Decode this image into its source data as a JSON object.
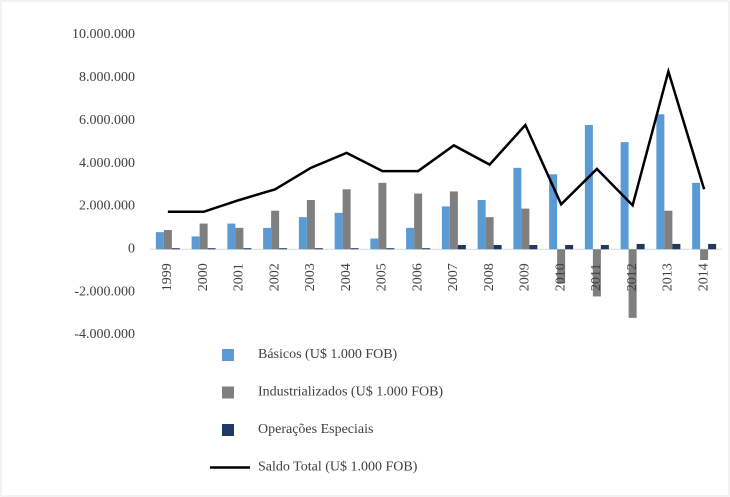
{
  "chart_data": {
    "type": "bar",
    "categories": [
      "1999",
      "2000",
      "2001",
      "2002",
      "2003",
      "2004",
      "2005",
      "2006",
      "2007",
      "2008",
      "2009",
      "2010",
      "2011",
      "2012",
      "2013",
      "2014"
    ],
    "series": [
      {
        "name": "Básicos (U$ 1.000 FOB)",
        "color": "#5b9bd5",
        "values": [
          800000,
          600000,
          1200000,
          1000000,
          1500000,
          1700000,
          500000,
          1000000,
          2000000,
          2300000,
          3800000,
          3500000,
          5800000,
          5000000,
          6300000,
          3100000
        ]
      },
      {
        "name": "Industrializados (U$ 1.000 FOB)",
        "color": "#7f7f7f",
        "values": [
          900000,
          1200000,
          1000000,
          1800000,
          2300000,
          2800000,
          3100000,
          2600000,
          2700000,
          1500000,
          1900000,
          -1600000,
          -2200000,
          -3200000,
          1800000,
          -500000
        ]
      },
      {
        "name": "Operações Especiais",
        "color": "#1f3864",
        "values": [
          50000,
          50000,
          50000,
          50000,
          50000,
          50000,
          50000,
          50000,
          200000,
          200000,
          200000,
          200000,
          200000,
          250000,
          250000,
          250000
        ]
      },
      {
        "name": "Saldo Total (U$ 1.000 FOB)",
        "color": "#000000",
        "type": "line",
        "values": [
          1750000,
          1750000,
          2300000,
          2800000,
          3800000,
          4500000,
          3650000,
          3650000,
          4850000,
          3950000,
          5800000,
          2100000,
          3750000,
          2050000,
          8300000,
          2800000
        ]
      }
    ],
    "ylim": [
      -4000000,
      10000000
    ],
    "yticks": [
      {
        "value": -4000000,
        "label": "-4.000.000"
      },
      {
        "value": -2000000,
        "label": "-2.000.000"
      },
      0,
      {
        "value": 2000000,
        "label": "2.000.000"
      },
      {
        "value": 4000000,
        "label": "4.000.000"
      },
      {
        "value": 6000000,
        "label": "6.000.000"
      },
      {
        "value": 8000000,
        "label": "8.000.000"
      },
      {
        "value": 10000000,
        "label": "10.000.000"
      }
    ],
    "legend": "bottom"
  }
}
